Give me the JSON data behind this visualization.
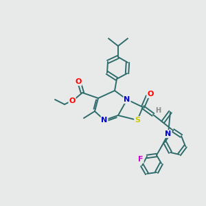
{
  "bg_color": "#e8eaea",
  "bond_color": "#2d6b6b",
  "atom_colors": {
    "O": "#ff0000",
    "N": "#0000cc",
    "S": "#cccc00",
    "F": "#cc00cc",
    "C": "#2d6b6b",
    "H": "#888888"
  },
  "fig_width": 3.0,
  "fig_height": 3.0,
  "dpi": 100
}
